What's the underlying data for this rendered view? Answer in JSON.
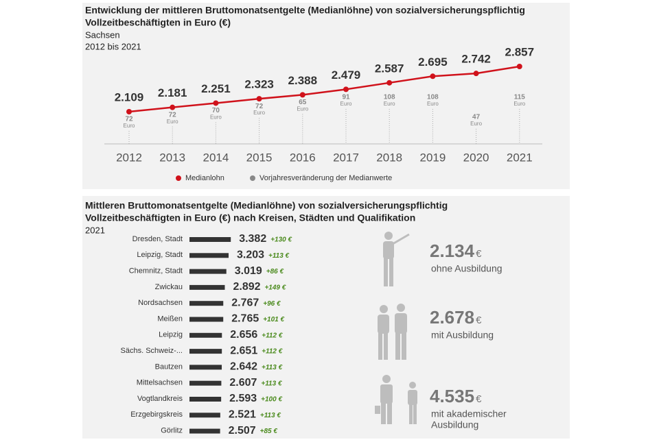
{
  "chart_data": [
    {
      "type": "line",
      "title": [
        "Entwicklung der mittleren Bruttomonatsentgelte (Medianlöhne) von sozialversicherungspflichtig",
        "Vollzeitbeschäftigten in Euro (€)"
      ],
      "subtitle": [
        "Sachsen",
        "2012 bis 2021"
      ],
      "categories": [
        "2012",
        "2013",
        "2014",
        "2015",
        "2016",
        "2017",
        "2018",
        "2019",
        "2020",
        "2021"
      ],
      "series": [
        {
          "name": "Medianlohn",
          "color": "#d0121b",
          "values": [
            2109,
            2181,
            2251,
            2323,
            2388,
            2479,
            2587,
            2695,
            2742,
            2857
          ],
          "value_labels": [
            "2.109",
            "2.181",
            "2.251",
            "2.323",
            "2.388",
            "2.479",
            "2.587",
            "2.695",
            "2.742",
            "2.857"
          ]
        },
        {
          "name": "Vorjahresveränderung der Medianwerte",
          "color": "#888888",
          "unit": "Euro",
          "values": [
            72,
            72,
            70,
            72,
            65,
            91,
            108,
            108,
            47,
            115
          ]
        }
      ]
    },
    {
      "type": "bar",
      "title": [
        "Mittleren Bruttomonatsentgelte (Medianlöhne) von sozialversicherungspflichtig",
        "Vollzeitbeschäftigten in Euro (€) nach Kreisen, Städten und Qualifikation"
      ],
      "subtitle": [
        "2021"
      ],
      "categories": [
        "Dresden, Stadt",
        "Leipzig, Stadt",
        "Chemnitz, Stadt",
        "Zwickau",
        "Nordsachsen",
        "Meißen",
        "Leipzig",
        "Sächs. Schweiz-...",
        "Bautzen",
        "Mittelsachsen",
        "Vogtlandkreis",
        "Erzgebirgskreis",
        "Görlitz"
      ],
      "series": [
        {
          "name": "Medianlohn",
          "color": "#333333",
          "values": [
            3382,
            3203,
            3019,
            2892,
            2767,
            2765,
            2656,
            2651,
            2642,
            2607,
            2593,
            2521,
            2507
          ],
          "value_labels": [
            "3.382",
            "3.203",
            "3.019",
            "2.892",
            "2.767",
            "2.765",
            "2.656",
            "2.651",
            "2.642",
            "2.607",
            "2.593",
            "2.521",
            "2.507"
          ]
        },
        {
          "name": "Vorjahresveränderung",
          "color": "#4a8a1c",
          "values": [
            130,
            113,
            86,
            149,
            96,
            101,
            112,
            112,
            113,
            113,
            100,
            113,
            85
          ],
          "value_labels": [
            "+130 €",
            "+113 €",
            "+86 €",
            "+149 €",
            "+96 €",
            "+101 €",
            "+112 €",
            "+112 €",
            "+113 €",
            "+113 €",
            "+100 €",
            "+113 €",
            "+85 €"
          ]
        }
      ],
      "qualifications": [
        {
          "value": 2134,
          "value_label": "2.134",
          "unit": "€",
          "label": [
            "ohne Ausbildung"
          ]
        },
        {
          "value": 2678,
          "value_label": "2.678",
          "unit": "€",
          "label": [
            "mit Ausbildung"
          ]
        },
        {
          "value": 4535,
          "value_label": "4.535",
          "unit": "€",
          "label": [
            "mit akademischer",
            "Ausbildung"
          ]
        }
      ]
    }
  ]
}
